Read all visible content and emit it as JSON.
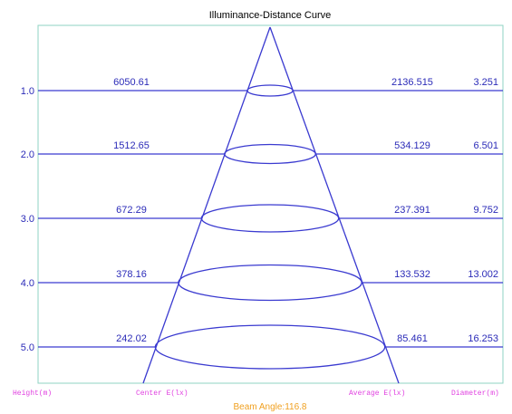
{
  "title": "Illuminance-Distance Curve",
  "rows": [
    {
      "height": "1.0",
      "center": "6050.61",
      "average": "2136.515",
      "diameter": "3.251"
    },
    {
      "height": "2.0",
      "center": "1512.65",
      "average": "534.129",
      "diameter": "6.501"
    },
    {
      "height": "3.0",
      "center": "672.29",
      "average": "237.391",
      "diameter": "9.752"
    },
    {
      "height": "4.0",
      "center": "378.16",
      "average": "133.532",
      "diameter": "13.002"
    },
    {
      "height": "5.0",
      "center": "242.02",
      "average": "85.461",
      "diameter": "16.253"
    }
  ],
  "footer": {
    "height": "Height(m)",
    "center": "Center E(lx)",
    "average": "Average E(lx)",
    "diameter": "Diameter(m)"
  },
  "beam_angle": "Beam Angle:116.8"
}
